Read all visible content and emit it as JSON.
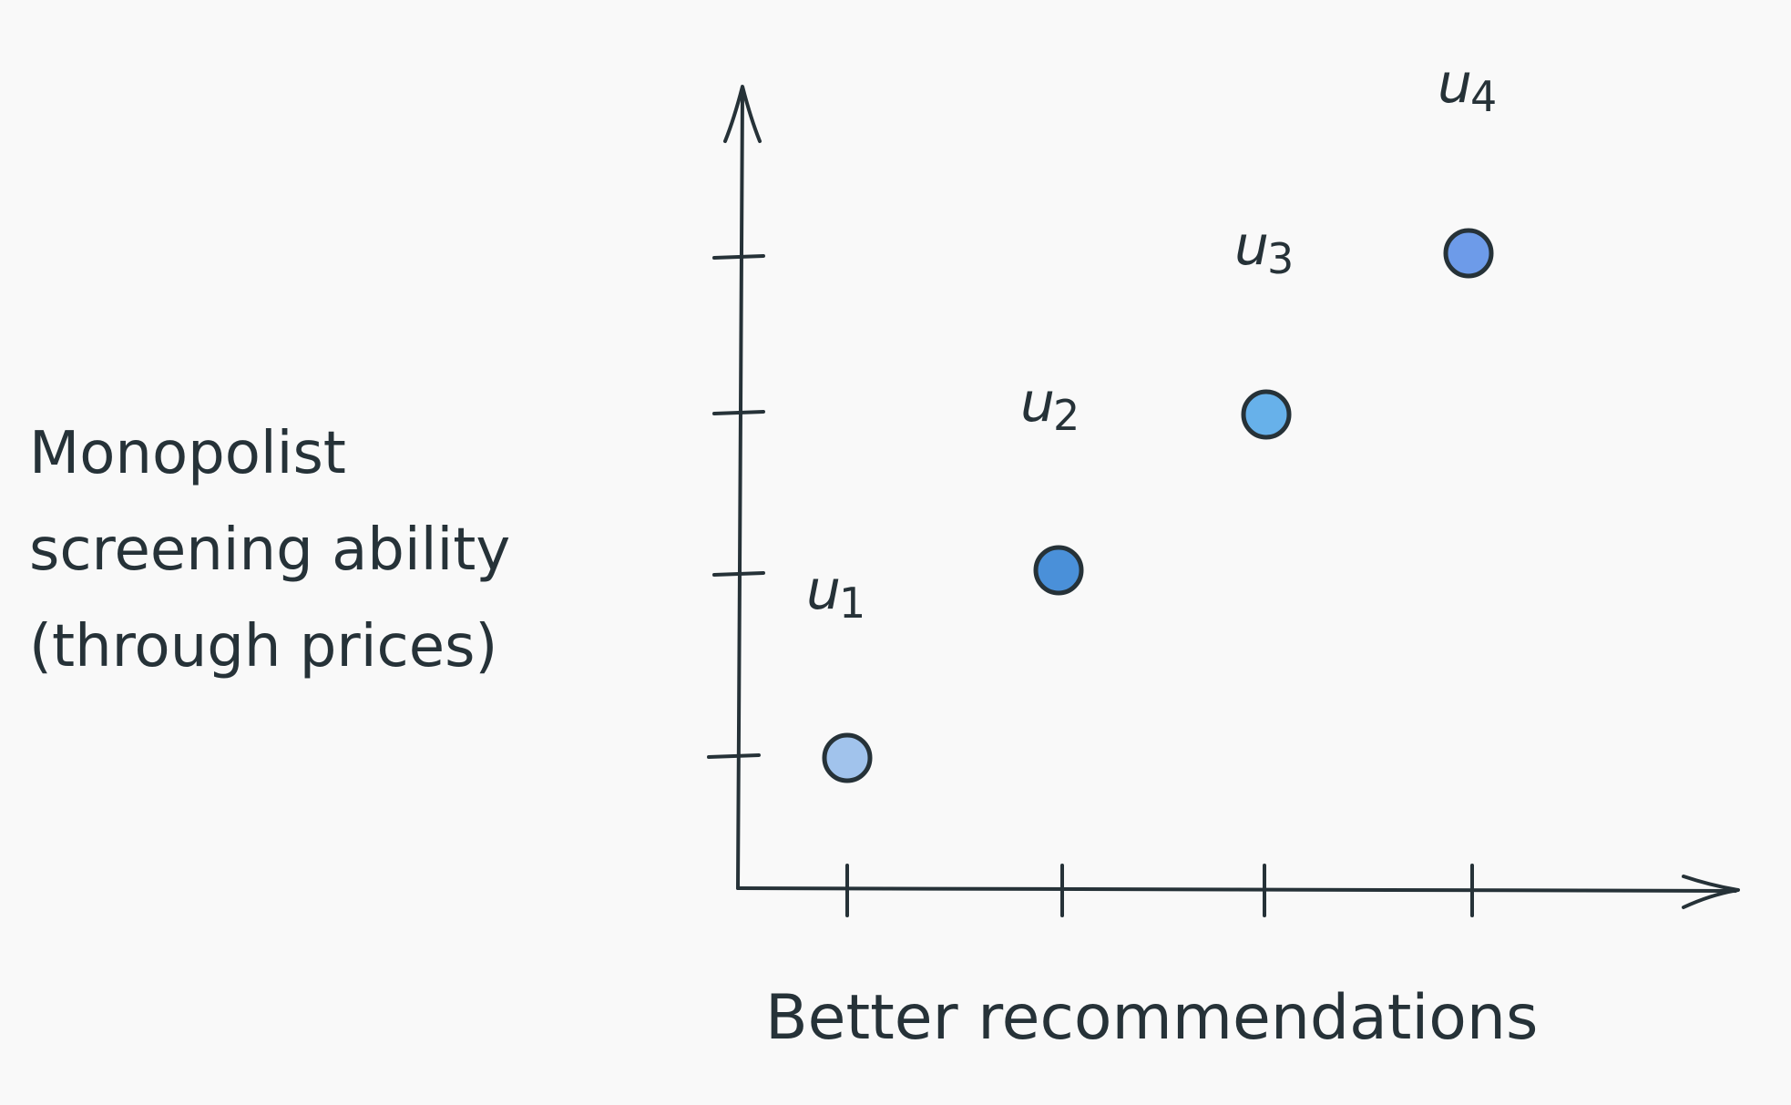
{
  "ylabel_lines": [
    "Monopolist",
    "screening ability",
    "(through prices)"
  ],
  "xlabel": "Better recommendations",
  "colors": {
    "axis": "#263238",
    "text": "#263238",
    "background": "#f9f9f9"
  },
  "chart_data": {
    "type": "scatter",
    "xlabel": "Better recommendations",
    "ylabel": "Monopolist screening ability (through prices)",
    "x_ticks": 4,
    "y_ticks": 4,
    "grid": false,
    "points": [
      {
        "label": "u",
        "sub": "1",
        "x": 1,
        "y": 1,
        "color": "#a1c3ec"
      },
      {
        "label": "u",
        "sub": "2",
        "x": 2,
        "y": 2,
        "color": "#4a90d9"
      },
      {
        "label": "u",
        "sub": "3",
        "x": 3,
        "y": 3,
        "color": "#67b1ea"
      },
      {
        "label": "u",
        "sub": "4",
        "x": 4,
        "y": 4,
        "color": "#6d9be9"
      }
    ]
  }
}
